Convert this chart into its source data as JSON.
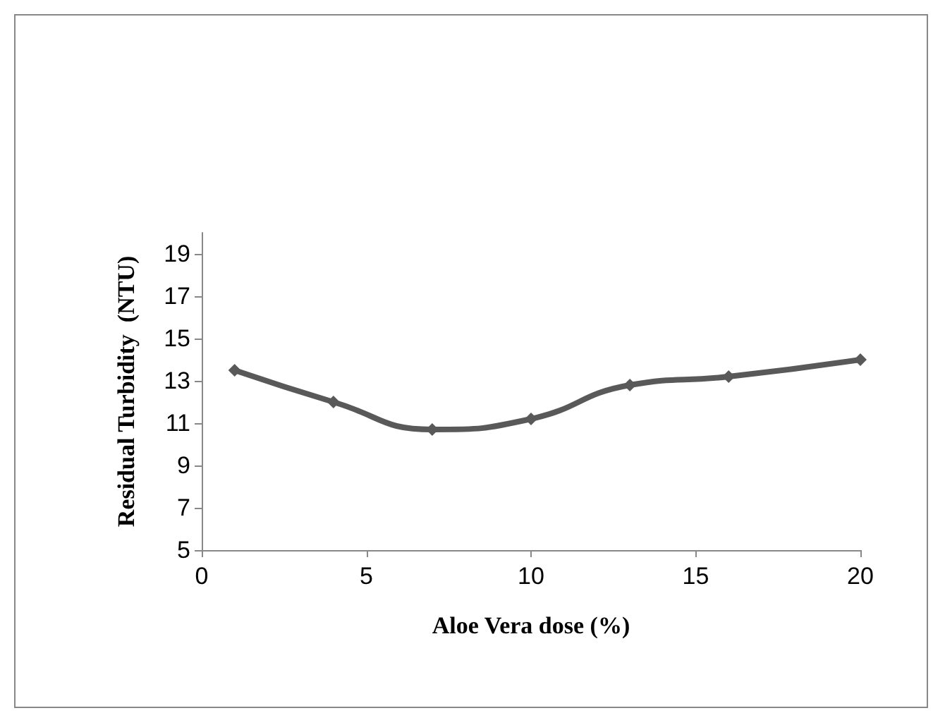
{
  "chart_data": {
    "type": "line",
    "xlabel": "Aloe Vera dose (%)",
    "ylabel": "Residual Turbidity  (NTU)",
    "x": [
      1,
      4,
      7,
      10,
      13,
      16,
      20
    ],
    "series": [
      {
        "color": "#595959",
        "values": [
          13.5,
          12.0,
          10.7,
          11.2,
          12.8,
          13.2,
          14.0
        ]
      }
    ],
    "xlim": [
      0,
      20
    ],
    "xticks": [
      0,
      5,
      10,
      15,
      20
    ],
    "ylim": [
      5,
      20
    ],
    "yticks": [
      5,
      7,
      9,
      11,
      13,
      15,
      17,
      19
    ],
    "grid": false,
    "marker": "diamond",
    "line_style": "solid"
  }
}
